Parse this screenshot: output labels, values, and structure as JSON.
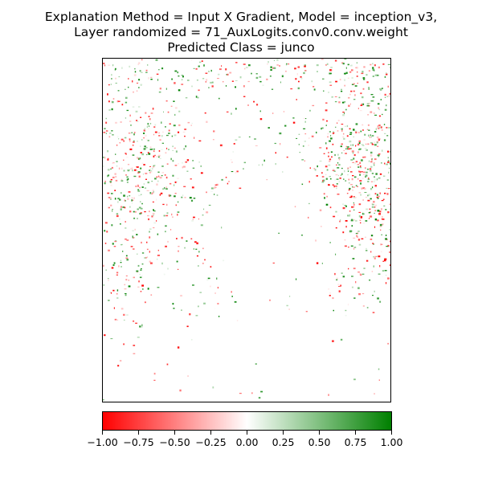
{
  "title": {
    "line1": "Explanation Method = Input X Gradient, Model = inception_v3,",
    "line2": "Layer randomized = 71_AuxLogits.conv0.conv.weight",
    "line3": "Predicted Class = junco"
  },
  "chart_data": {
    "type": "heatmap",
    "title": "Explanation Method = Input X Gradient, Model = inception_v3, Layer randomized = 71_AuxLogits.conv0.conv.weight, Predicted Class = junco",
    "xlabel": "",
    "ylabel": "",
    "colorbar": {
      "range": [
        -1.0,
        1.0
      ],
      "colors": {
        "negative": "#ff0000",
        "zero": "#ffffff",
        "positive": "#008000"
      },
      "ticks": [
        -1.0,
        -0.75,
        -0.5,
        -0.25,
        0.0,
        0.25,
        0.5,
        0.75,
        1.0
      ],
      "tick_labels": [
        "−1.00",
        "−0.75",
        "−0.50",
        "−0.25",
        "0.00",
        "0.25",
        "0.50",
        "0.75",
        "1.00"
      ]
    }
  }
}
